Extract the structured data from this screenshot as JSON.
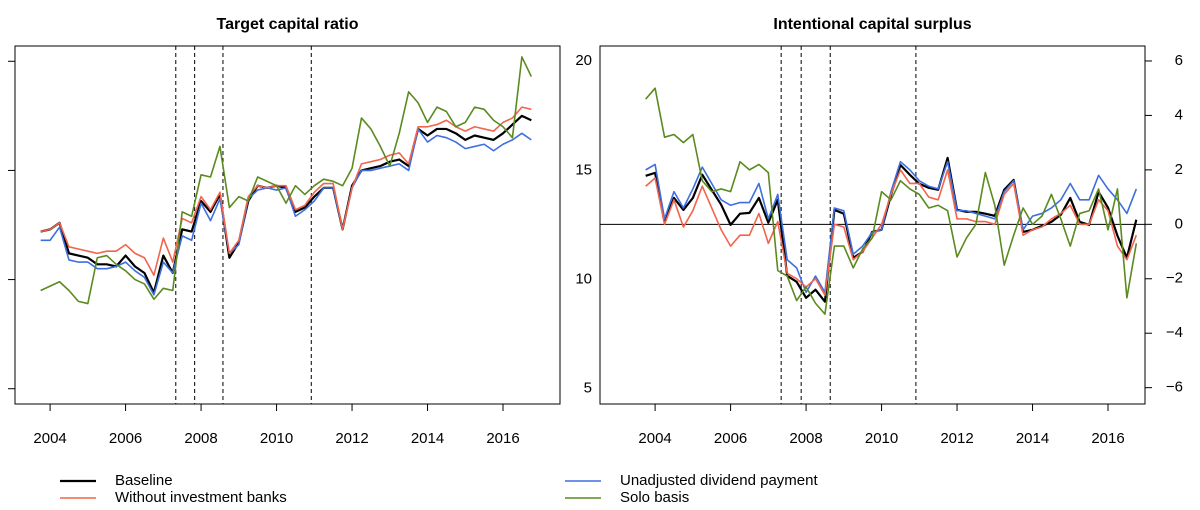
{
  "chart_data": [
    {
      "type": "line",
      "title": "Target capital ratio",
      "x": [
        2003.75,
        2004,
        2004.25,
        2004.5,
        2004.75,
        2005,
        2005.25,
        2005.5,
        2005.75,
        2006,
        2006.25,
        2006.5,
        2006.75,
        2007,
        2007.25,
        2007.5,
        2007.75,
        2008,
        2008.25,
        2008.5,
        2008.75,
        2009,
        2009.25,
        2009.5,
        2009.75,
        2010,
        2010.25,
        2010.5,
        2010.75,
        2011,
        2011.25,
        2011.5,
        2011.75,
        2012,
        2012.25,
        2012.5,
        2012.75,
        2013,
        2013.25,
        2013.5,
        2013.75,
        2014,
        2014.25,
        2014.5,
        2014.75,
        2015,
        2015.25,
        2015.5,
        2015.75,
        2016,
        2016.25,
        2016.5,
        2016.75
      ],
      "xlim": [
        2003.07,
        2017.51
      ],
      "xticks": [
        2004,
        2006,
        2008,
        2010,
        2012,
        2014,
        2016
      ],
      "ylim": [
        4.3,
        20.7
      ],
      "yticks": [
        5,
        10,
        15,
        20
      ],
      "ytick_label_side": "right",
      "vlines": [
        2007.33,
        2007.83,
        2008.58,
        2010.92
      ],
      "series": [
        {
          "name": "Baseline",
          "color": "#000000",
          "width": 2.2,
          "values": [
            12.2,
            12.3,
            12.6,
            11.2,
            11.1,
            11.0,
            10.7,
            10.7,
            10.6,
            11.1,
            10.6,
            10.3,
            9.4,
            11.1,
            10.3,
            12.3,
            12.2,
            13.6,
            13.1,
            13.9,
            11.0,
            11.7,
            13.6,
            14.3,
            14.2,
            14.3,
            14.2,
            13.1,
            13.3,
            13.8,
            14.2,
            14.2,
            12.3,
            14.3,
            15.0,
            15.1,
            15.2,
            15.4,
            15.5,
            15.2,
            16.9,
            16.6,
            16.9,
            16.9,
            16.7,
            16.4,
            16.6,
            16.5,
            16.4,
            16.7,
            17.1,
            17.5,
            17.3
          ]
        },
        {
          "name": "Unadjusted dividend payment",
          "color": "#3d6fe0",
          "width": 1.6,
          "values": [
            11.8,
            11.8,
            12.4,
            10.9,
            10.8,
            10.8,
            10.5,
            10.5,
            10.6,
            10.8,
            10.4,
            10.1,
            9.3,
            10.8,
            10.3,
            12.0,
            11.8,
            13.5,
            12.7,
            13.7,
            11.2,
            11.6,
            13.7,
            14.1,
            14.2,
            14.1,
            14.2,
            12.9,
            13.2,
            13.6,
            14.2,
            14.2,
            12.3,
            14.2,
            15.0,
            15.0,
            15.1,
            15.2,
            15.3,
            15.0,
            16.9,
            16.3,
            16.6,
            16.5,
            16.3,
            16.0,
            16.1,
            16.2,
            15.9,
            16.2,
            16.4,
            16.7,
            16.4
          ]
        },
        {
          "name": "Without investment banks",
          "color": "#f2644c",
          "width": 1.6,
          "values": [
            12.2,
            12.3,
            12.6,
            11.5,
            11.4,
            11.3,
            11.2,
            11.3,
            11.3,
            11.6,
            11.2,
            11.0,
            10.2,
            11.9,
            10.8,
            12.8,
            12.6,
            13.8,
            13.2,
            14.0,
            11.2,
            11.8,
            13.8,
            14.3,
            14.2,
            14.3,
            14.3,
            13.2,
            13.4,
            14.0,
            14.4,
            14.4,
            12.3,
            14.2,
            15.3,
            15.4,
            15.5,
            15.7,
            15.8,
            15.3,
            17.0,
            17.0,
            17.1,
            17.3,
            17.0,
            16.8,
            17.0,
            16.9,
            16.8,
            17.2,
            17.4,
            17.9,
            17.8
          ]
        },
        {
          "name": "Solo basis",
          "color": "#5b8a1f",
          "width": 1.6,
          "values": [
            9.5,
            9.7,
            9.9,
            9.5,
            9.0,
            8.9,
            11.0,
            11.1,
            10.7,
            10.4,
            10.0,
            9.8,
            9.1,
            9.6,
            9.5,
            13.1,
            12.9,
            14.8,
            14.7,
            16.1,
            13.3,
            13.8,
            13.6,
            14.7,
            14.5,
            14.3,
            13.5,
            14.3,
            13.9,
            14.3,
            14.6,
            14.5,
            14.3,
            15.1,
            17.4,
            16.9,
            16.1,
            15.2,
            16.7,
            18.6,
            18.1,
            17.2,
            17.9,
            17.7,
            17.0,
            17.2,
            17.9,
            17.8,
            17.3,
            17.0,
            16.5,
            20.2,
            19.3
          ]
        }
      ]
    },
    {
      "type": "line",
      "title": "Intentional capital surplus",
      "x": [
        2003.75,
        2004,
        2004.25,
        2004.5,
        2004.75,
        2005,
        2005.25,
        2005.5,
        2005.75,
        2006,
        2006.25,
        2006.5,
        2006.75,
        2007,
        2007.25,
        2007.5,
        2007.75,
        2008,
        2008.25,
        2008.5,
        2008.75,
        2009,
        2009.25,
        2009.5,
        2009.75,
        2010,
        2010.25,
        2010.5,
        2010.75,
        2011,
        2011.25,
        2011.5,
        2011.75,
        2012,
        2012.25,
        2012.5,
        2012.75,
        2013,
        2013.25,
        2013.5,
        2013.75,
        2014,
        2014.25,
        2014.5,
        2014.75,
        2015,
        2015.25,
        2015.5,
        2015.75,
        2016,
        2016.25,
        2016.5,
        2016.75
      ],
      "xlim": [
        2002.54,
        2016.98
      ],
      "xticks": [
        2004,
        2006,
        2008,
        2010,
        2012,
        2014,
        2016
      ],
      "ylim": [
        -6.6,
        6.55
      ],
      "ytick_label_side": "right",
      "yticks": [
        {
          "value": -6,
          "label": "−6"
        },
        {
          "value": -4,
          "label": "−4"
        },
        {
          "value": -2,
          "label": "−2"
        },
        0,
        2,
        4,
        6
      ],
      "hline": 0,
      "vlines": [
        2007.34,
        2007.87,
        2008.64,
        2010.91
      ],
      "series": [
        {
          "color": "#000000",
          "width": 2.2,
          "values": [
            1.78,
            1.89,
            0.09,
            0.97,
            0.53,
            0.97,
            1.82,
            1.27,
            0.72,
            -0.02,
            0.39,
            0.42,
            0.97,
            0.06,
            0.9,
            -1.89,
            -2.11,
            -2.7,
            -2.4,
            -2.84,
            0.53,
            0.39,
            -1.23,
            -1.01,
            -0.28,
            -0.2,
            1.08,
            2.18,
            1.82,
            1.49,
            1.34,
            1.27,
            2.44,
            0.53,
            0.46,
            0.46,
            0.39,
            0.31,
            1.27,
            1.63,
            -0.28,
            -0.2,
            -0.06,
            0.09,
            0.35,
            0.97,
            0.09,
            -0.02,
            1.19,
            0.61,
            -0.42,
            -1.23,
            0.17
          ]
        },
        {
          "color": "#3d6fe0",
          "width": 1.6,
          "values": [
            2.0,
            2.2,
            0.2,
            1.2,
            0.6,
            1.3,
            2.1,
            1.5,
            0.9,
            0.7,
            0.8,
            0.8,
            1.5,
            0.2,
            1.1,
            -1.3,
            -1.6,
            -2.5,
            -1.9,
            -2.5,
            0.6,
            0.5,
            -1.1,
            -0.8,
            -0.3,
            -0.2,
            1.2,
            2.3,
            2.0,
            1.6,
            1.4,
            1.3,
            2.3,
            0.5,
            0.5,
            0.4,
            0.3,
            0.2,
            1.2,
            1.6,
            -0.2,
            0.3,
            0.4,
            0.6,
            0.9,
            1.5,
            0.9,
            0.9,
            1.8,
            1.3,
            0.9,
            0.4,
            1.3
          ]
        },
        {
          "color": "#f2644c",
          "width": 1.6,
          "values": [
            1.4,
            1.7,
            0.0,
            0.9,
            -0.1,
            0.5,
            1.4,
            0.6,
            -0.2,
            -0.8,
            -0.4,
            -0.4,
            0.4,
            -0.7,
            0.1,
            -1.8,
            -2.0,
            -2.3,
            -2.0,
            -2.6,
            0.0,
            -0.1,
            -1.3,
            -1.0,
            -0.5,
            0.0,
            1.1,
            2.0,
            1.5,
            1.5,
            1.0,
            0.9,
            2.0,
            0.2,
            0.2,
            0.1,
            0.1,
            0.0,
            1.1,
            1.5,
            -0.4,
            -0.2,
            -0.1,
            0.2,
            0.4,
            0.7,
            0.0,
            0.0,
            0.9,
            0.5,
            -0.8,
            -1.3,
            -0.4
          ]
        },
        {
          "color": "#5b8a1f",
          "width": 1.6,
          "values": [
            4.6,
            5.0,
            3.2,
            3.3,
            3.0,
            3.3,
            1.6,
            1.2,
            1.3,
            1.2,
            2.3,
            2.0,
            2.2,
            1.9,
            -1.7,
            -1.9,
            -2.8,
            -2.3,
            -2.9,
            -3.3,
            -0.8,
            -0.8,
            -1.6,
            -0.9,
            -0.5,
            1.2,
            0.9,
            1.6,
            1.3,
            1.1,
            0.6,
            0.7,
            0.5,
            -1.2,
            -0.5,
            0.0,
            1.9,
            0.7,
            -1.5,
            -0.4,
            0.6,
            0.0,
            0.3,
            1.1,
            0.2,
            -0.8,
            0.4,
            0.5,
            1.3,
            -0.2,
            1.3,
            -2.7,
            -0.7
          ]
        }
      ]
    }
  ]
}
